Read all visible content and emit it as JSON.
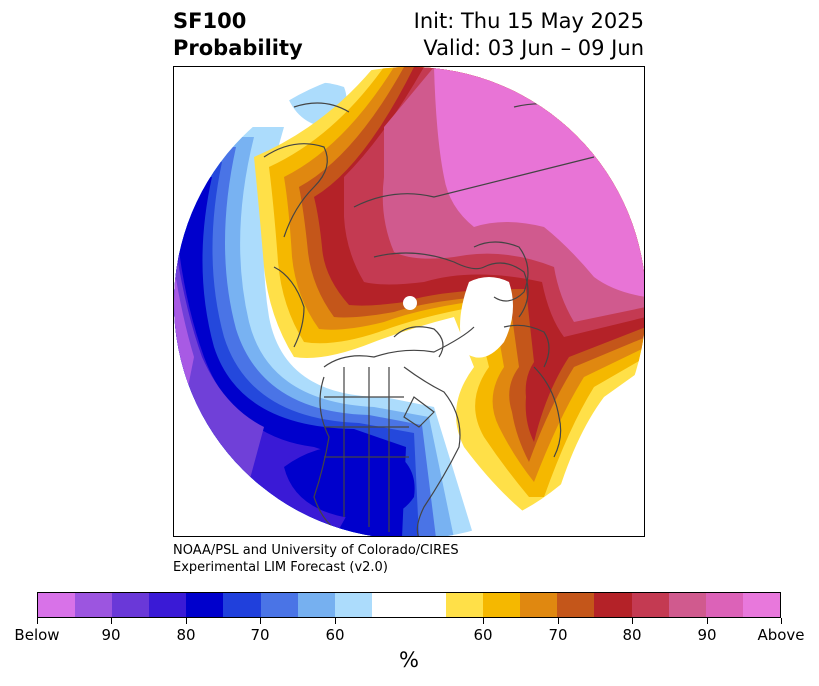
{
  "title": {
    "left_line1": "SF100",
    "left_line2": "Probability",
    "right_line1": "Init: Thu 15 May 2025",
    "right_line2": "Valid: 03 Jun – 09 Jun"
  },
  "credit": {
    "line1": "NOAA/PSL and University of Colorado/CIRES",
    "line2": "Experimental LIM Forecast (v2.0)"
  },
  "colorbar": {
    "colors": [
      "#d872e8",
      "#9c55e0",
      "#6a38d8",
      "#3a1ad6",
      "#0000cc",
      "#2040dc",
      "#4a74e6",
      "#76b0f0",
      "#acdcfc",
      "#ffffff",
      "#ffffff",
      "#ffe048",
      "#f5b800",
      "#e08810",
      "#c4561a",
      "#b42228",
      "#c43a52",
      "#d05a8e",
      "#dc62b8",
      "#e878dc"
    ],
    "tick_labels": [
      "Below",
      "90",
      "80",
      "70",
      "60",
      "60",
      "70",
      "80",
      "90",
      "Above"
    ],
    "units_label": "%"
  },
  "map": {
    "projection": "north-polar-stereographic",
    "field": "SF100 probability",
    "below_colors": [
      "#a85ae4",
      "#7040d8",
      "#3a1ad6",
      "#0000cc",
      "#2448dc",
      "#4a74e6",
      "#78b2f2",
      "#acdcfc"
    ],
    "above_colors": [
      "#ffe048",
      "#f5b800",
      "#e08810",
      "#c4561a",
      "#b42228",
      "#c43a52",
      "#d05a8e",
      "#e874d6"
    ],
    "coastline_color": "#444444"
  }
}
